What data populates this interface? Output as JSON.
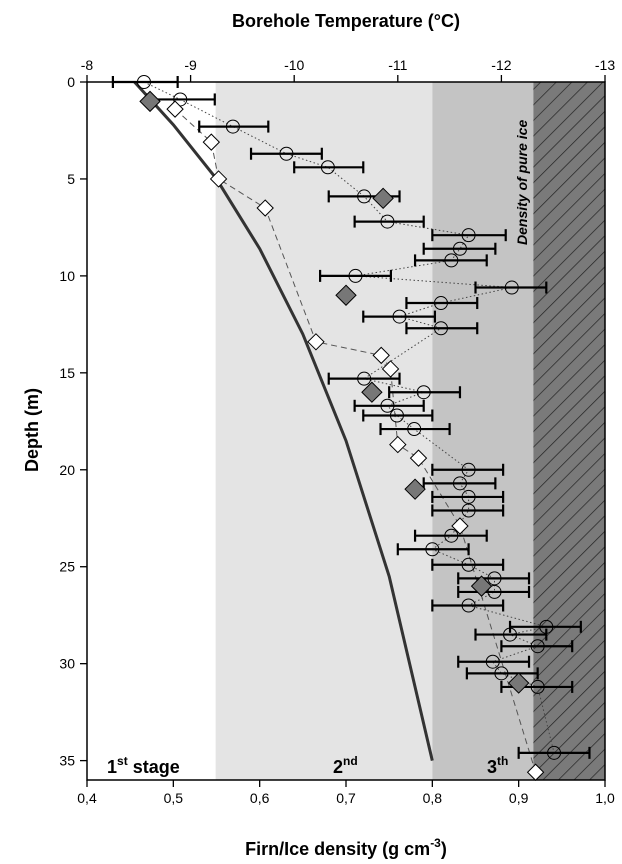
{
  "chart_data": {
    "type": "scatter",
    "title": "",
    "top_axis": {
      "label": "Borehole Temperature (°C)",
      "ticks": [
        -8,
        -9,
        -10,
        -11,
        -12,
        -13
      ],
      "range": [
        -8,
        -13
      ]
    },
    "xlabel": "Firn/Ice density (g cm-3)",
    "xlabel_main": "Firn/Ice density (g cm",
    "xlabel_sup": "-3",
    "xlabel_end": ")",
    "ylabel": "Depth (m)",
    "xlim": [
      0.4,
      1.0
    ],
    "ylim": [
      0,
      36
    ],
    "y_inverted": true,
    "x_ticks": [
      "0,4",
      "0,5",
      "0,6",
      "0,7",
      "0,8",
      "0,9",
      "1,0"
    ],
    "y_ticks": [
      0,
      5,
      10,
      15,
      20,
      25,
      30,
      35
    ],
    "zones": [
      {
        "from": 0.549,
        "to": 0.8,
        "color": "#e4e4e4"
      },
      {
        "from": 0.8,
        "to": 0.917,
        "color": "#c4c4c4"
      },
      {
        "from": 0.917,
        "to": 1.0,
        "color": "#7a7a7a",
        "hatched": true
      }
    ],
    "labels": {
      "stage1_main": "1",
      "stage1_sup": "st",
      "stage1_end": " stage",
      "stage2_main": "2",
      "stage2_sup": "nd",
      "stage3_main": "3",
      "stage3_sup": "th",
      "pure_ice": "Density of pure ice"
    },
    "circles": [
      {
        "depth": 0.0,
        "density": 0.466,
        "err": [
          0.43,
          0.505
        ]
      },
      {
        "depth": 0.9,
        "density": 0.508,
        "err": [
          0.47,
          0.548
        ]
      },
      {
        "depth": 2.3,
        "density": 0.569,
        "err": [
          0.53,
          0.61
        ]
      },
      {
        "depth": 3.7,
        "density": 0.631,
        "err": [
          0.59,
          0.672
        ]
      },
      {
        "depth": 4.4,
        "density": 0.679,
        "err": [
          0.64,
          0.72
        ]
      },
      {
        "depth": 5.9,
        "density": 0.721,
        "err": [
          0.68,
          0.762
        ]
      },
      {
        "depth": 7.2,
        "density": 0.748,
        "err": [
          0.71,
          0.79
        ]
      },
      {
        "depth": 7.9,
        "density": 0.842,
        "err": [
          0.8,
          0.885
        ]
      },
      {
        "depth": 8.6,
        "density": 0.832,
        "err": [
          0.79,
          0.873
        ]
      },
      {
        "depth": 9.2,
        "density": 0.822,
        "err": [
          0.78,
          0.863
        ]
      },
      {
        "depth": 10.0,
        "density": 0.711,
        "err": [
          0.67,
          0.752
        ]
      },
      {
        "depth": 10.6,
        "density": 0.892,
        "err": [
          0.85,
          0.932
        ]
      },
      {
        "depth": 11.4,
        "density": 0.81,
        "err": [
          0.77,
          0.852
        ]
      },
      {
        "depth": 12.1,
        "density": 0.762,
        "err": [
          0.72,
          0.803
        ]
      },
      {
        "depth": 12.7,
        "density": 0.81,
        "err": [
          0.77,
          0.852
        ]
      },
      {
        "depth": 15.3,
        "density": 0.721,
        "err": [
          0.68,
          0.762
        ]
      },
      {
        "depth": 16.0,
        "density": 0.79,
        "err": [
          0.75,
          0.832
        ]
      },
      {
        "depth": 16.7,
        "density": 0.748,
        "err": [
          0.71,
          0.79
        ]
      },
      {
        "depth": 17.2,
        "density": 0.759,
        "err": [
          0.72,
          0.8
        ]
      },
      {
        "depth": 17.9,
        "density": 0.779,
        "err": [
          0.74,
          0.82
        ]
      },
      {
        "depth": 20.0,
        "density": 0.842,
        "err": [
          0.8,
          0.882
        ]
      },
      {
        "depth": 20.7,
        "density": 0.832,
        "err": [
          0.79,
          0.873
        ]
      },
      {
        "depth": 21.4,
        "density": 0.842,
        "err": [
          0.8,
          0.882
        ]
      },
      {
        "depth": 22.1,
        "density": 0.842,
        "err": [
          0.8,
          0.882
        ]
      },
      {
        "depth": 23.4,
        "density": 0.822,
        "err": [
          0.78,
          0.863
        ]
      },
      {
        "depth": 24.1,
        "density": 0.8,
        "err": [
          0.76,
          0.842
        ]
      },
      {
        "depth": 24.9,
        "density": 0.842,
        "err": [
          0.8,
          0.882
        ]
      },
      {
        "depth": 25.6,
        "density": 0.872,
        "err": [
          0.83,
          0.912
        ]
      },
      {
        "depth": 26.3,
        "density": 0.872,
        "err": [
          0.83,
          0.912
        ]
      },
      {
        "depth": 27.0,
        "density": 0.842,
        "err": [
          0.8,
          0.882
        ]
      },
      {
        "depth": 28.1,
        "density": 0.932,
        "err": [
          0.89,
          0.972
        ]
      },
      {
        "depth": 28.5,
        "density": 0.89,
        "err": [
          0.85,
          0.932
        ]
      },
      {
        "depth": 29.1,
        "density": 0.922,
        "err": [
          0.88,
          0.962
        ]
      },
      {
        "depth": 29.9,
        "density": 0.87,
        "err": [
          0.83,
          0.912
        ]
      },
      {
        "depth": 30.5,
        "density": 0.88,
        "err": [
          0.84,
          0.922
        ]
      },
      {
        "depth": 31.2,
        "density": 0.922,
        "err": [
          0.88,
          0.962
        ]
      },
      {
        "depth": 34.6,
        "density": 0.941,
        "err": [
          0.9,
          0.982
        ]
      }
    ],
    "open_diamonds": [
      {
        "depth": 1.4,
        "temp": -8.85
      },
      {
        "depth": 3.1,
        "temp": -9.2
      },
      {
        "depth": 5.0,
        "temp": -9.27
      },
      {
        "depth": 6.5,
        "temp": -9.72
      },
      {
        "depth": 13.4,
        "temp": -10.21
      },
      {
        "depth": 14.1,
        "temp": -10.84
      },
      {
        "depth": 14.8,
        "temp": -10.93
      },
      {
        "depth": 18.7,
        "temp": -11.0
      },
      {
        "depth": 19.4,
        "temp": -11.2
      },
      {
        "depth": 22.9,
        "temp": -11.6
      },
      {
        "depth": 35.6,
        "temp": -12.33
      }
    ],
    "filled_diamonds": [
      {
        "depth": 1.0,
        "density": 0.473
      },
      {
        "depth": 6.0,
        "density": 0.743
      },
      {
        "depth": 11.0,
        "density": 0.7
      },
      {
        "depth": 16.0,
        "density": 0.73
      },
      {
        "depth": 21.0,
        "density": 0.78
      },
      {
        "depth": 26.0,
        "density": 0.857
      },
      {
        "depth": 31.0,
        "density": 0.9
      }
    ],
    "model_curve": [
      {
        "density": 0.455,
        "depth": 0
      },
      {
        "density": 0.5,
        "depth": 2.2
      },
      {
        "density": 0.55,
        "depth": 5.0
      },
      {
        "density": 0.6,
        "depth": 8.6
      },
      {
        "density": 0.65,
        "depth": 13.0
      },
      {
        "density": 0.7,
        "depth": 18.5
      },
      {
        "density": 0.75,
        "depth": 25.5
      },
      {
        "density": 0.8,
        "depth": 35
      }
    ]
  }
}
